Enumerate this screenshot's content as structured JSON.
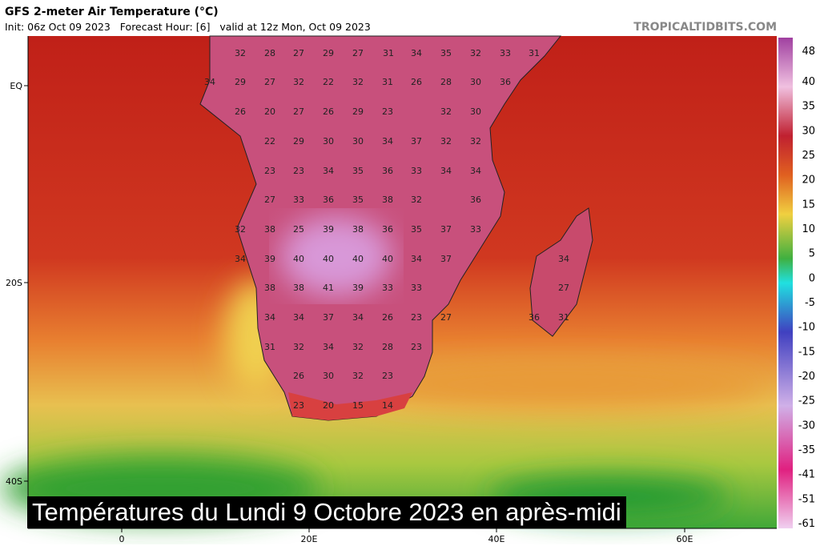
{
  "header": {
    "title": "GFS 2-meter Air Temperature (°C)",
    "subtitle": "Init: 06z Oct 09 2023   Forecast Hour: [6]   valid at 12z Mon, Oct 09 2023",
    "site": "TROPICALTIDBITS.COM"
  },
  "lat_labels": [
    "EQ",
    "20S",
    "40S"
  ],
  "lon_labels": [
    "0",
    "20E",
    "40E",
    "60E"
  ],
  "colorbar_labels": [
    "48",
    "40",
    "35",
    "30",
    "25",
    "20",
    "15",
    "10",
    "5",
    "0",
    "-5",
    "-10",
    "-15",
    "-20",
    "-25",
    "-30",
    "-35",
    "-41",
    "-51",
    "-61"
  ],
  "temperature_labels": [
    [
      32,
      28,
      27,
      29,
      27,
      31,
      34,
      35,
      32,
      33,
      31
    ],
    [
      34,
      29,
      27,
      32,
      22,
      32,
      31,
      26,
      28,
      30,
      36
    ],
    [
      26,
      20,
      27,
      26,
      29,
      23,
      32,
      30
    ],
    [
      22,
      29,
      30,
      30,
      34,
      37,
      32,
      32
    ],
    [
      23,
      23,
      34,
      35,
      36,
      33,
      34,
      34
    ],
    [
      27,
      33,
      36,
      35,
      38,
      32,
      36
    ],
    [
      32,
      38,
      25,
      39,
      38,
      36,
      35,
      37,
      33
    ],
    [
      34,
      39,
      40,
      40,
      40,
      40,
      34,
      37,
      34
    ],
    [
      38,
      38,
      41,
      39,
      33,
      33,
      27
    ],
    [
      34,
      34,
      37,
      34,
      26,
      23,
      27,
      36,
      31
    ],
    [
      31,
      32,
      34,
      32,
      28,
      23
    ],
    [
      26,
      30,
      32,
      23
    ],
    [
      23,
      20,
      15,
      14
    ]
  ],
  "caption": "Températures du Lundi 9 Octobre 2023 en après-midi"
}
